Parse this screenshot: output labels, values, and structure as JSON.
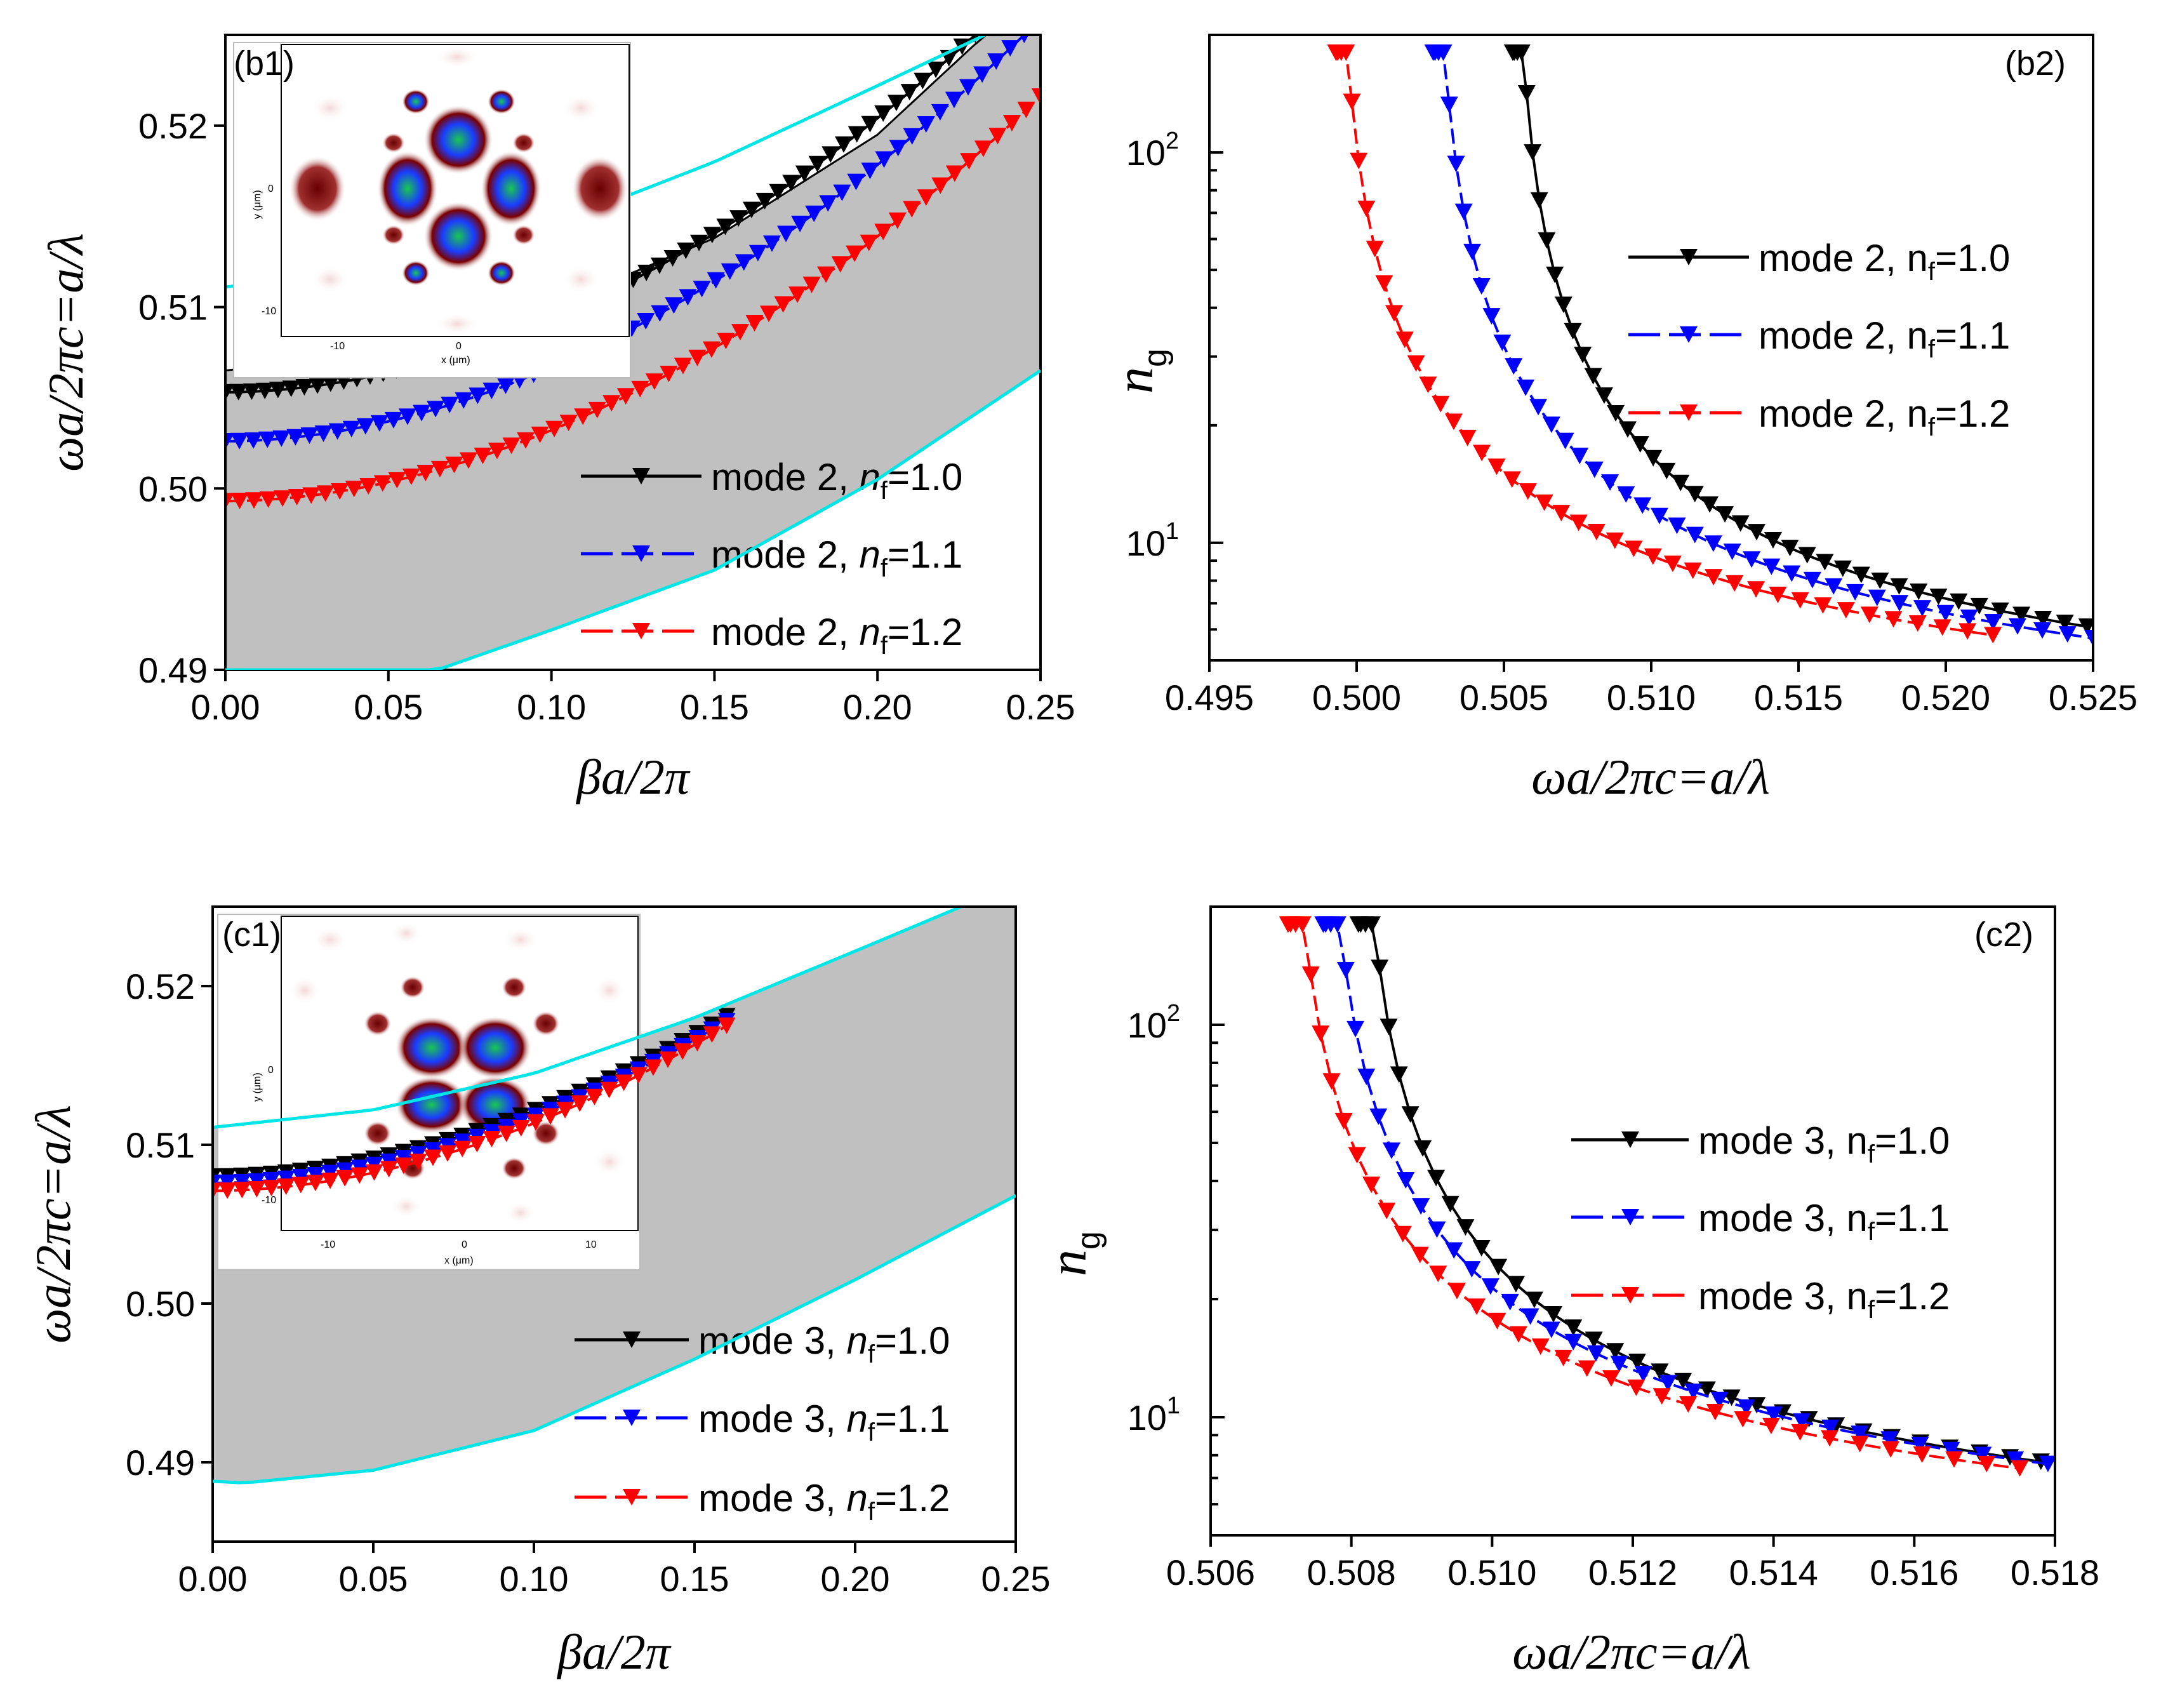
{
  "chart_data": [
    {
      "panel": "(b1)",
      "type": "line",
      "xlabel": "βa/2π",
      "ylabel": "ωa/2πc=a/λ",
      "xlim": [
        0.0,
        0.25
      ],
      "ylim": [
        0.49,
        0.525
      ],
      "xticks": [
        "0.00",
        "0.05",
        "0.10",
        "0.15",
        "0.20",
        "0.25"
      ],
      "yticks": [
        "0.49",
        "0.50",
        "0.51",
        "0.52"
      ],
      "xtick_values": [
        0.0,
        0.05,
        0.1,
        0.15,
        0.2,
        0.25
      ],
      "ytick_values": [
        0.49,
        0.5,
        0.51,
        0.52
      ],
      "band_upper": {
        "x": [
          0.0,
          0.05,
          0.1,
          0.15,
          0.2,
          0.233,
          0.25
        ],
        "y": [
          0.5065,
          0.5075,
          0.51,
          0.5138,
          0.5195,
          0.525,
          0.525
        ]
      },
      "band_lower": {
        "x": [
          0.0,
          0.065,
          0.1,
          0.15,
          0.2,
          0.25
        ],
        "y": [
          0.49,
          0.49,
          0.4922,
          0.4955,
          0.5005,
          0.5065
        ]
      },
      "light_line": {
        "x": [
          0.0,
          0.05,
          0.1,
          0.15,
          0.2,
          0.233
        ],
        "y": [
          0.5111,
          0.5122,
          0.5145,
          0.518,
          0.5222,
          0.525
        ]
      },
      "series": [
        {
          "name": "mode 2, nf=1.0",
          "legend_mode": "mode 2, ",
          "legend_sym": "n",
          "legend_sub": "f",
          "legend_val": "=1.0",
          "color": "#000000",
          "x_end": 0.23,
          "y0": 0.5053,
          "y1": 0.525
        },
        {
          "name": "mode 2, nf=1.1",
          "legend_mode": "mode 2, ",
          "legend_sym": "n",
          "legend_sub": "f",
          "legend_val": "=1.1",
          "color": "#0000ff",
          "x_end": 0.245,
          "y0": 0.5026,
          "y1": 0.525
        },
        {
          "name": "mode 2, nf=1.2",
          "legend_mode": "mode 2, ",
          "legend_sym": "n",
          "legend_sub": "f",
          "legend_val": "=1.2",
          "color": "#ff0000",
          "x_end": 0.25,
          "y0": 0.4993,
          "y1": 0.5216
        }
      ]
    },
    {
      "panel": "(b2)",
      "type": "line",
      "xlabel": "ωa/2πc=a/λ",
      "ylabel": "n_g",
      "xlim": [
        0.495,
        0.525
      ],
      "ylim_log": [
        5,
        200
      ],
      "xticks": [
        "0.495",
        "0.500",
        "0.505",
        "0.510",
        "0.515",
        "0.520",
        "0.525"
      ],
      "xtick_values": [
        0.495,
        0.5,
        0.505,
        0.51,
        0.515,
        0.52,
        0.525
      ],
      "yticks": [
        "10",
        "10"
      ],
      "ytick_exps": [
        "1",
        "2"
      ],
      "ytick_values": [
        10,
        100
      ],
      "series": [
        {
          "name": "mode 2, nf=1.0",
          "legend_mode": "mode 2, n",
          "legend_sub": "f",
          "legend_val": "=1.0",
          "color": "#000000",
          "x0": 0.5053,
          "x1": 0.5248,
          "y_end": 6.1
        },
        {
          "name": "mode 2, nf=1.1",
          "legend_mode": "mode 2, n",
          "legend_sub": "f",
          "legend_val": "=1.1",
          "color": "#0000ff",
          "x0": 0.5026,
          "x1": 0.525,
          "y_end": 5.7
        },
        {
          "name": "mode 2, nf=1.2",
          "legend_mode": "mode 2, n",
          "legend_sub": "f",
          "legend_val": "=1.2",
          "color": "#ff0000",
          "x0": 0.4993,
          "x1": 0.5216,
          "y_end": 5.8
        }
      ]
    },
    {
      "panel": "(c1)",
      "type": "line",
      "xlabel": "βa/2π",
      "ylabel": "ωa/2πc=a/λ",
      "xlim": [
        0.0,
        0.25
      ],
      "ylim": [
        0.485,
        0.525
      ],
      "xticks": [
        "0.00",
        "0.05",
        "0.10",
        "0.15",
        "0.20",
        "0.25"
      ],
      "yticks": [
        "0.49",
        "0.50",
        "0.51",
        "0.52"
      ],
      "xtick_values": [
        0.0,
        0.05,
        0.1,
        0.15,
        0.2,
        0.25
      ],
      "ytick_values": [
        0.49,
        0.5,
        0.51,
        0.52
      ],
      "band_upper": {
        "x": [
          0.0,
          0.05,
          0.1,
          0.15,
          0.2,
          0.233,
          0.25
        ],
        "y": [
          0.5111,
          0.5122,
          0.5145,
          0.518,
          0.5222,
          0.525,
          0.525
        ]
      },
      "band_lower": {
        "x": [
          0.0,
          0.01,
          0.05,
          0.1,
          0.15,
          0.2,
          0.25
        ],
        "y": [
          0.4888,
          0.4887,
          0.4895,
          0.492,
          0.4965,
          0.5015,
          0.5068
        ]
      },
      "light_line": {
        "x": [
          0.0,
          0.05,
          0.1,
          0.15,
          0.2,
          0.233
        ],
        "y": [
          0.5111,
          0.5122,
          0.5145,
          0.518,
          0.5222,
          0.525
        ]
      },
      "series": [
        {
          "name": "mode 3, nf=1.0",
          "legend_mode": "mode 3, ",
          "legend_sym": "n",
          "legend_sub": "f",
          "legend_val": "=1.0",
          "color": "#000000",
          "x_end": 0.16,
          "y0": 0.508,
          "y1": 0.5181
        },
        {
          "name": "mode 3, nf=1.1",
          "legend_mode": "mode 3, ",
          "legend_sym": "n",
          "legend_sub": "f",
          "legend_val": "=1.1",
          "color": "#0000ff",
          "x_end": 0.16,
          "y0": 0.5076,
          "y1": 0.5178
        },
        {
          "name": "mode 3, nf=1.2",
          "legend_mode": "mode 3, ",
          "legend_sym": "n",
          "legend_sub": "f",
          "legend_val": "=1.2",
          "color": "#ff0000",
          "x_end": 0.16,
          "y0": 0.5071,
          "y1": 0.5175
        }
      ]
    },
    {
      "panel": "(c2)",
      "type": "line",
      "xlabel": "ωa/2πc=a/λ",
      "ylabel": "n_g",
      "xlim": [
        0.506,
        0.518
      ],
      "ylim_log": [
        5,
        200
      ],
      "xticks": [
        "0.506",
        "0.508",
        "0.510",
        "0.512",
        "0.514",
        "0.516",
        "0.518"
      ],
      "xtick_values": [
        0.506,
        0.508,
        0.51,
        0.512,
        0.514,
        0.516,
        0.518
      ],
      "yticks": [
        "10",
        "10"
      ],
      "ytick_exps": [
        "1",
        "2"
      ],
      "ytick_values": [
        10,
        100
      ],
      "series": [
        {
          "name": "mode 3, nf=1.0",
          "legend_mode": "mode 3, n",
          "legend_sub": "f",
          "legend_val": "=1.0",
          "color": "#000000",
          "x0": 0.5081,
          "x1": 0.5178,
          "y_end": 7.7
        },
        {
          "name": "mode 3, nf=1.1",
          "legend_mode": "mode 3, n",
          "legend_sub": "f",
          "legend_val": "=1.1",
          "color": "#0000ff",
          "x0": 0.5076,
          "x1": 0.5179,
          "y_end": 7.6
        },
        {
          "name": "mode 3, nf=1.2",
          "legend_mode": "mode 3, n",
          "legend_sub": "f",
          "legend_val": "=1.2",
          "color": "#ff0000",
          "x0": 0.5071,
          "x1": 0.5175,
          "y_end": 7.4
        }
      ]
    }
  ],
  "insets": {
    "b1": {
      "ylabel": "y (μm)",
      "xlabel": "x (μm)",
      "xticks": [
        "-10",
        "0"
      ],
      "yticks": [
        "0",
        "-10"
      ]
    },
    "c1": {
      "ylabel": "y (μm)",
      "xlabel": "x (μm)",
      "xticks": [
        "-10",
        "0",
        "10"
      ],
      "yticks": [
        "0",
        "-10"
      ]
    }
  },
  "colors": {
    "band": "#c0c0c0",
    "light_line": "#00e5e5",
    "inset_dark": "#7a0000",
    "inset_blue": "#1a3cff",
    "inset_green": "#18c850"
  }
}
